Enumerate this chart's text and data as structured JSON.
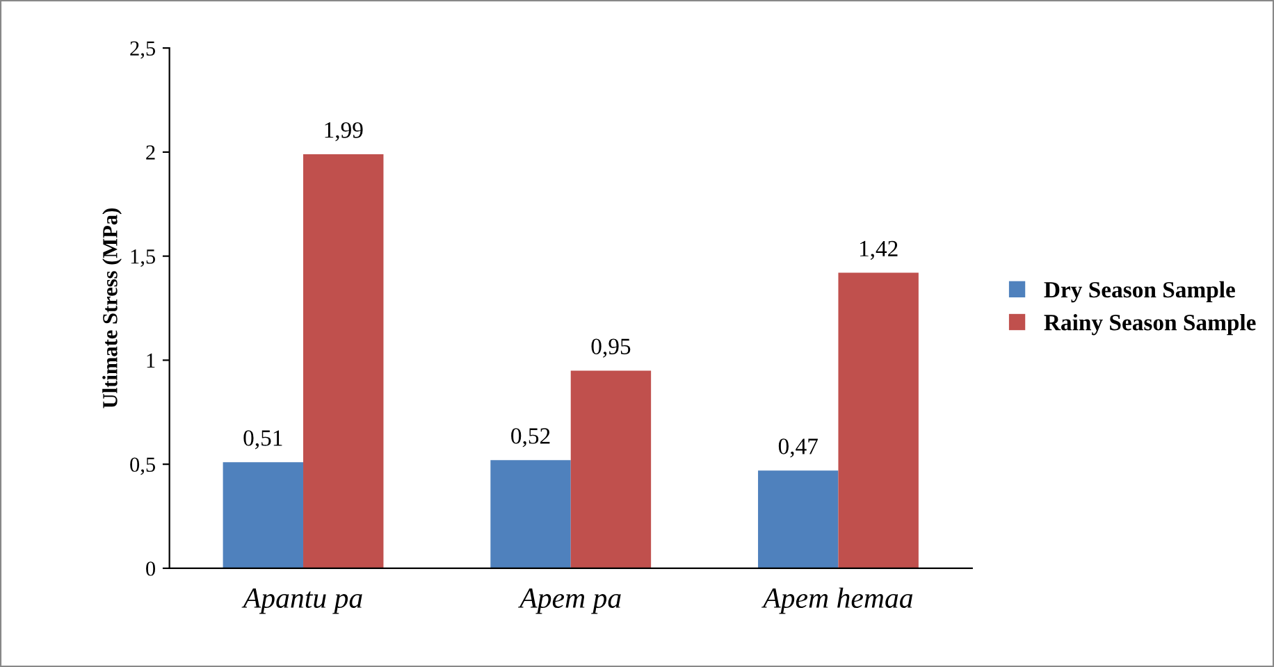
{
  "chart_data": {
    "type": "bar",
    "ylabel": "Ultimate Stress (MPa)",
    "categories": [
      "Apantu pa",
      "Apem pa",
      "Apem hemaa"
    ],
    "series": [
      {
        "name": "Dry Season Sample",
        "color": "#4f81bd",
        "values": [
          0.51,
          0.52,
          0.47
        ],
        "value_labels": [
          "0,51",
          "0,52",
          "0,47"
        ]
      },
      {
        "name": "Rainy Season Sample",
        "color": "#c0504d",
        "values": [
          1.99,
          0.95,
          1.42
        ],
        "value_labels": [
          "1,99",
          "0,95",
          "1,42"
        ]
      }
    ],
    "ylim": [
      0,
      2.5
    ],
    "yticks": [
      0,
      {
        "value": 0.5,
        "label": "0,5"
      },
      1,
      {
        "value": 1.5,
        "label": "1,5"
      },
      2,
      {
        "value": 2.5,
        "label": "2,5"
      }
    ],
    "grid": false,
    "legend": "right"
  }
}
